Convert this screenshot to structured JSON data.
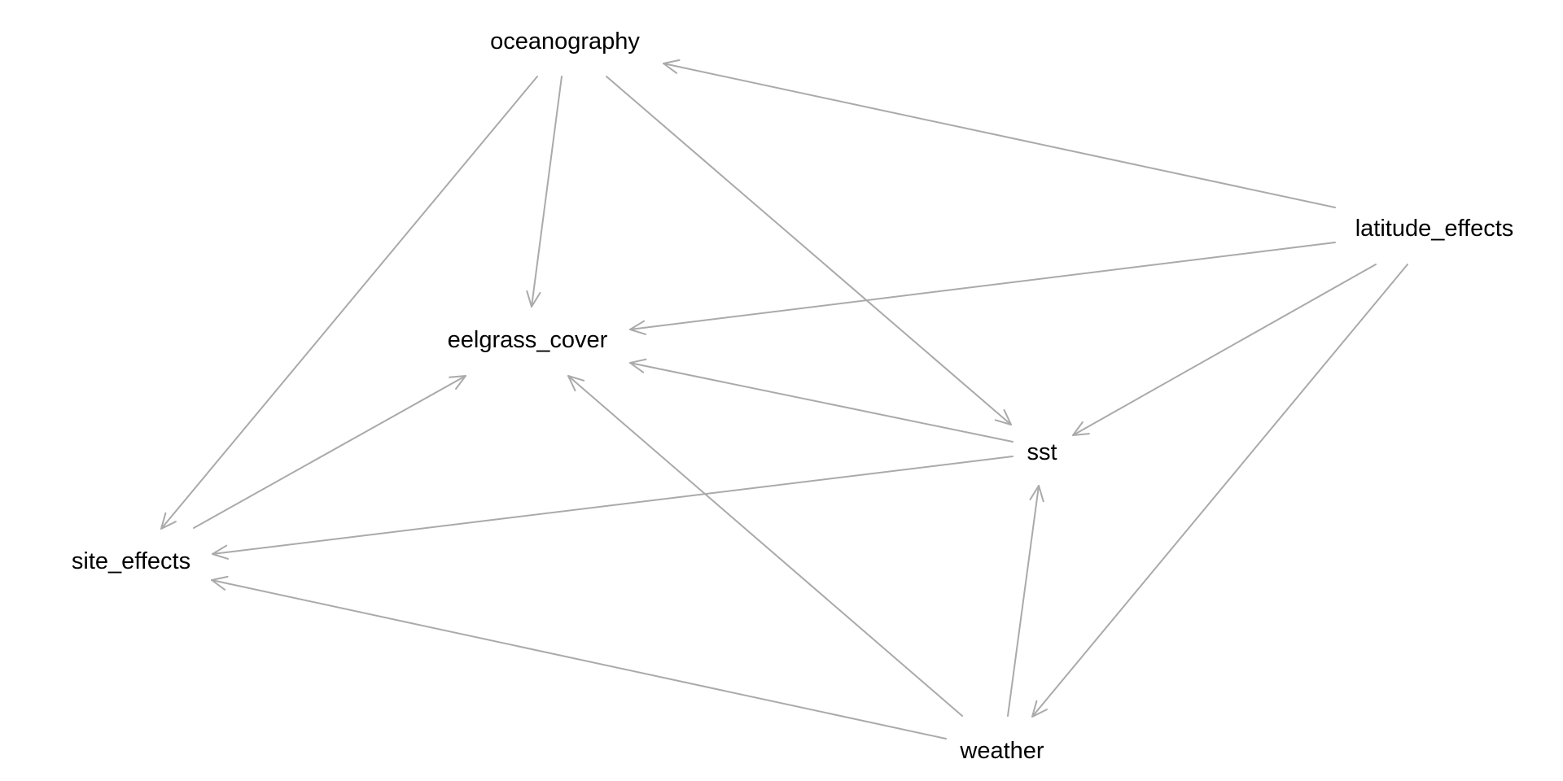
{
  "nodes": [
    {
      "id": "oceanography",
      "label": "oceanography"
    },
    {
      "id": "latitude_effects",
      "label": "latitude_effects"
    },
    {
      "id": "eelgrass_cover",
      "label": "eelgrass_cover"
    },
    {
      "id": "sst",
      "label": "sst"
    },
    {
      "id": "site_effects",
      "label": "site_effects"
    },
    {
      "id": "weather",
      "label": "weather"
    }
  ],
  "edges": [
    {
      "from": "latitude_effects",
      "to": "oceanography"
    },
    {
      "from": "oceanography",
      "to": "site_effects"
    },
    {
      "from": "oceanography",
      "to": "eelgrass_cover"
    },
    {
      "from": "oceanography",
      "to": "sst"
    },
    {
      "from": "latitude_effects",
      "to": "eelgrass_cover"
    },
    {
      "from": "latitude_effects",
      "to": "sst"
    },
    {
      "from": "latitude_effects",
      "to": "weather"
    },
    {
      "from": "site_effects",
      "to": "eelgrass_cover"
    },
    {
      "from": "sst",
      "to": "eelgrass_cover"
    },
    {
      "from": "sst",
      "to": "site_effects"
    },
    {
      "from": "weather",
      "to": "eelgrass_cover"
    },
    {
      "from": "weather",
      "to": "sst"
    },
    {
      "from": "weather",
      "to": "site_effects"
    }
  ],
  "colors": {
    "edge": "#aaaaaa",
    "label": "#000000",
    "background": "#ffffff"
  }
}
